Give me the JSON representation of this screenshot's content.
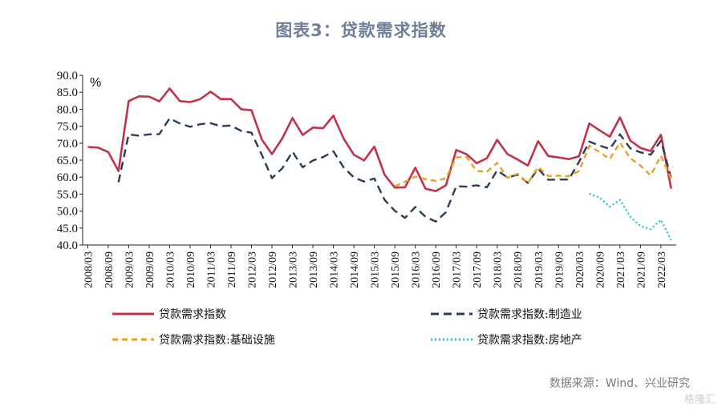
{
  "title": "图表3：贷款需求指数",
  "source": "数据来源：Wind、兴业研究",
  "watermark": "格隆汇",
  "chart_data": {
    "type": "line",
    "unit_label": "%",
    "ylim": [
      40,
      90
    ],
    "yticks": [
      "40.0",
      "45.0",
      "50.0",
      "55.0",
      "60.0",
      "65.0",
      "70.0",
      "75.0",
      "80.0",
      "85.0",
      "90.0"
    ],
    "xticks": [
      "2008/03",
      "2008/09",
      "2009/03",
      "2009/09",
      "2010/03",
      "2010/09",
      "2011/03",
      "2011/09",
      "2012/03",
      "2012/09",
      "2013/03",
      "2013/09",
      "2014/03",
      "2014/09",
      "2015/03",
      "2015/09",
      "2016/03",
      "2016/09",
      "2017/03",
      "2017/09",
      "2018/03",
      "2018/09",
      "2019/03",
      "2019/09",
      "2020/03",
      "2020/09",
      "2021/03",
      "2021/09",
      "2022/03"
    ],
    "x": [
      "2008/03",
      "2008/06",
      "2008/09",
      "2008/12",
      "2009/03",
      "2009/06",
      "2009/09",
      "2009/12",
      "2010/03",
      "2010/06",
      "2010/09",
      "2010/12",
      "2011/03",
      "2011/06",
      "2011/09",
      "2011/12",
      "2012/03",
      "2012/06",
      "2012/09",
      "2012/12",
      "2013/03",
      "2013/06",
      "2013/09",
      "2013/12",
      "2014/03",
      "2014/06",
      "2014/09",
      "2014/12",
      "2015/03",
      "2015/06",
      "2015/09",
      "2015/12",
      "2016/03",
      "2016/06",
      "2016/09",
      "2016/12",
      "2017/03",
      "2017/06",
      "2017/09",
      "2017/12",
      "2018/03",
      "2018/06",
      "2018/09",
      "2018/12",
      "2019/03",
      "2019/06",
      "2019/09",
      "2019/12",
      "2020/03",
      "2020/06",
      "2020/09",
      "2020/12",
      "2021/03",
      "2021/06",
      "2021/09",
      "2021/12",
      "2022/03",
      "2022/06"
    ],
    "series": [
      {
        "name": "贷款需求指数",
        "color": "#c0334a",
        "dash": "solid",
        "values": [
          68.9,
          68.7,
          67.4,
          61.8,
          82.4,
          83.8,
          83.7,
          82.3,
          86.1,
          82.4,
          82.1,
          83.0,
          85.2,
          83.0,
          83.0,
          80.0,
          79.7,
          71.1,
          66.8,
          71.4,
          77.4,
          72.4,
          74.6,
          74.4,
          78.1,
          71.4,
          66.6,
          64.9,
          69.0,
          60.7,
          56.9,
          57.0,
          62.8,
          56.6,
          55.9,
          57.6,
          68.0,
          66.8,
          64.1,
          65.6,
          71.0,
          66.8,
          65.2,
          63.4,
          70.6,
          66.2,
          65.8,
          65.3,
          66.1,
          75.8,
          73.8,
          71.9,
          77.6,
          70.8,
          68.6,
          67.7,
          72.5,
          56.6
        ]
      },
      {
        "name": "贷款需求指数:制造业",
        "color": "#2b3d55",
        "dash": "dashed",
        "values": [
          null,
          null,
          null,
          58.5,
          72.6,
          72.2,
          72.6,
          72.7,
          77.3,
          75.8,
          74.8,
          75.6,
          75.9,
          75.0,
          75.2,
          73.6,
          73.1,
          66.6,
          59.7,
          62.6,
          67.5,
          62.9,
          64.9,
          65.9,
          67.6,
          62.9,
          59.9,
          58.7,
          59.6,
          53.3,
          50.1,
          48.0,
          51.2,
          48.3,
          46.9,
          49.7,
          57.3,
          57.2,
          57.6,
          57.0,
          62.0,
          59.9,
          60.7,
          58.3,
          62.5,
          59.2,
          59.3,
          59.3,
          64.5,
          70.5,
          69.3,
          68.3,
          72.6,
          68.5,
          67.3,
          66.6,
          70.7,
          59.7
        ]
      },
      {
        "name": "贷款需求指数:基础设施",
        "color": "#e8a020",
        "dash": "longdash",
        "values": [
          null,
          null,
          null,
          null,
          null,
          null,
          null,
          null,
          null,
          null,
          null,
          null,
          null,
          null,
          null,
          null,
          null,
          null,
          null,
          null,
          null,
          null,
          null,
          null,
          null,
          null,
          null,
          null,
          null,
          null,
          57.3,
          58.6,
          60.2,
          59.4,
          58.9,
          59.7,
          65.8,
          66.0,
          61.8,
          61.6,
          64.2,
          59.8,
          61.0,
          58.3,
          63.0,
          60.3,
          60.4,
          60.3,
          61.8,
          69.2,
          67.4,
          65.3,
          70.2,
          65.6,
          63.4,
          60.5,
          66.3,
          59.6
        ]
      },
      {
        "name": "贷款需求指数:房地产",
        "color": "#2ec4c8",
        "dash": "dotted",
        "values": [
          null,
          null,
          null,
          null,
          null,
          null,
          null,
          null,
          null,
          null,
          null,
          null,
          null,
          null,
          null,
          null,
          null,
          null,
          null,
          null,
          null,
          null,
          null,
          null,
          null,
          null,
          null,
          null,
          null,
          null,
          null,
          null,
          null,
          null,
          null,
          null,
          null,
          null,
          null,
          null,
          null,
          null,
          null,
          null,
          null,
          null,
          null,
          null,
          null,
          55.1,
          54.0,
          51.3,
          53.3,
          48.4,
          45.6,
          44.7,
          47.4,
          41.5
        ]
      }
    ],
    "legend": [
      "贷款需求指数",
      "贷款需求指数:制造业",
      "贷款需求指数:基础设施",
      "贷款需求指数:房地产"
    ]
  }
}
